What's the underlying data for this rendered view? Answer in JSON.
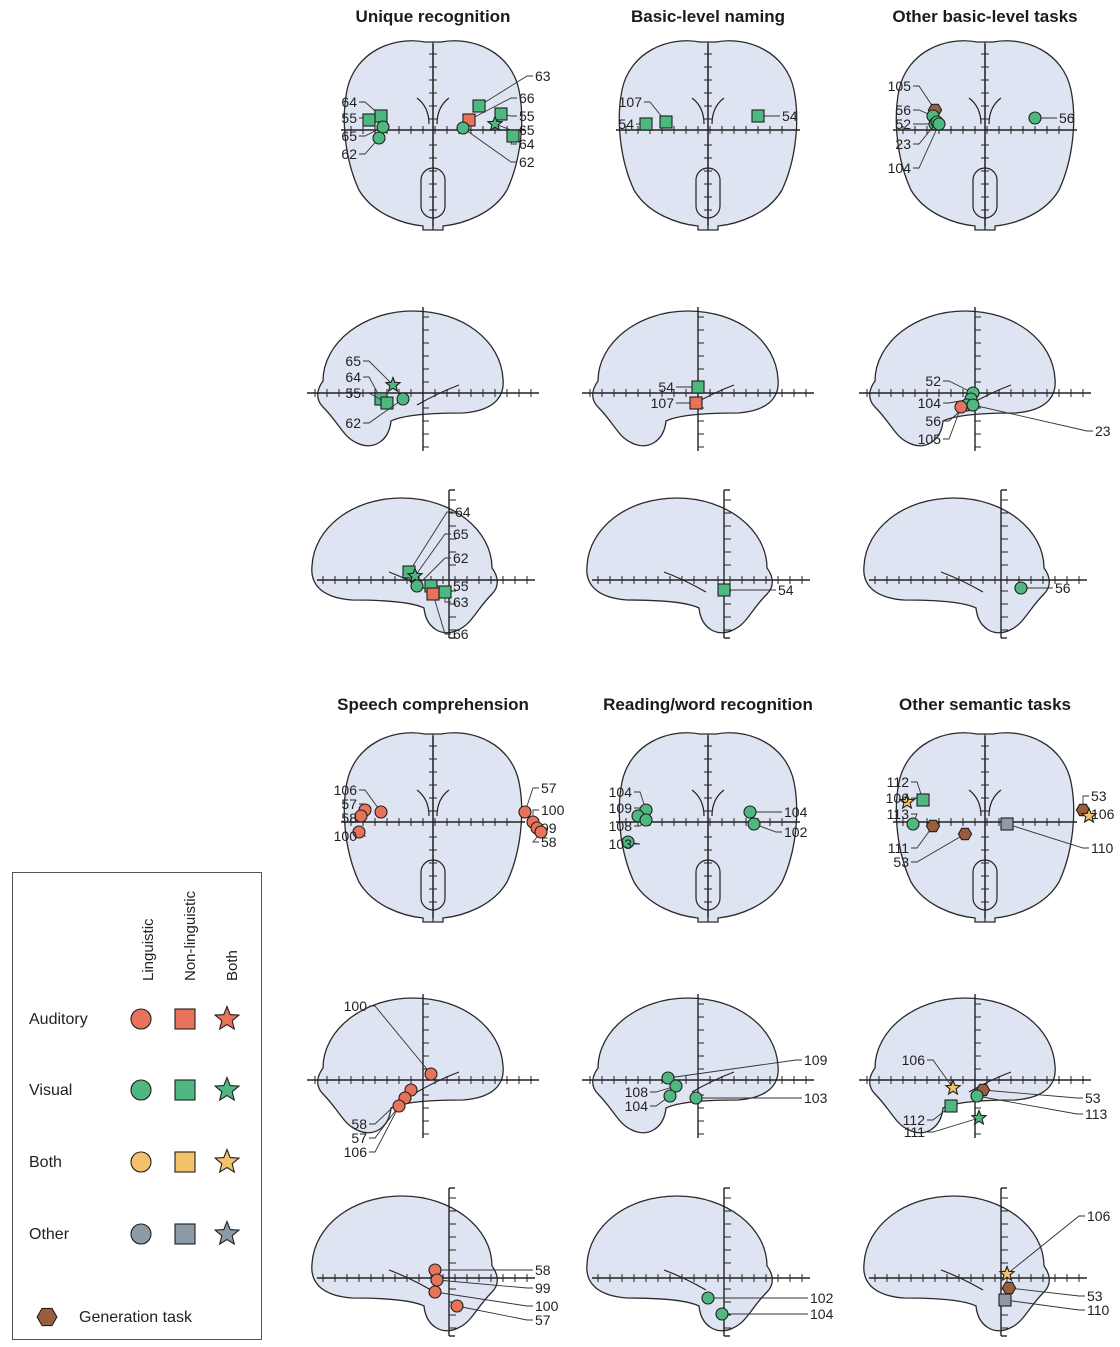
{
  "colors": {
    "brain_fill": "#dfe4f3",
    "brain_stroke": "#2b2b2b",
    "auditory": "#e8735a",
    "visual": "#4fb880",
    "both": "#f3c26b",
    "other": "#8c9ba6",
    "generation": "#9b5e3c"
  },
  "panels": [
    {
      "title": "Unique recognition"
    },
    {
      "title": "Basic-level naming"
    },
    {
      "title": "Other basic-level tasks"
    },
    {
      "title": "Speech comprehension"
    },
    {
      "title": "Reading/word recognition"
    },
    {
      "title": "Other semantic tasks"
    }
  ],
  "legend": {
    "columns": [
      "Linguistic",
      "Non-linguistic",
      "Both"
    ],
    "rows": [
      "Auditory",
      "Visual",
      "Both",
      "Other"
    ],
    "generation_label": "Generation task"
  },
  "views": [
    {
      "panel": 0,
      "view": "axial",
      "marks": [
        {
          "s": "square",
          "c": "visual",
          "label": "64"
        },
        {
          "s": "square",
          "c": "visual",
          "label": "55"
        },
        {
          "s": "circle",
          "c": "visual",
          "label": "65"
        },
        {
          "s": "circle",
          "c": "visual",
          "label": "62"
        },
        {
          "s": "square",
          "c": "visual",
          "label": "63"
        },
        {
          "s": "square",
          "c": "auditory",
          "label": "66"
        },
        {
          "s": "square",
          "c": "visual",
          "label": "55"
        },
        {
          "s": "star",
          "c": "visual",
          "label": "65"
        },
        {
          "s": "square",
          "c": "visual",
          "label": "64"
        },
        {
          "s": "circle",
          "c": "visual",
          "label": "62"
        }
      ]
    },
    {
      "panel": 1,
      "view": "axial",
      "marks": [
        {
          "s": "square",
          "c": "visual",
          "label": "107"
        },
        {
          "s": "square",
          "c": "visual",
          "label": "54"
        },
        {
          "s": "square",
          "c": "visual",
          "label": "54"
        }
      ]
    },
    {
      "panel": 2,
      "view": "axial",
      "marks": [
        {
          "s": "hexagon",
          "c": "generation",
          "label": "105"
        },
        {
          "s": "circle",
          "c": "visual",
          "label": "56"
        },
        {
          "s": "circle",
          "c": "visual",
          "label": "52"
        },
        {
          "s": "circle",
          "c": "visual",
          "label": "23"
        },
        {
          "s": "circle",
          "c": "visual",
          "label": "104"
        },
        {
          "s": "circle",
          "c": "visual",
          "label": "56"
        }
      ]
    },
    {
      "panel": 0,
      "view": "lateral",
      "marks": [
        {
          "s": "star",
          "c": "visual",
          "label": "65"
        },
        {
          "s": "square",
          "c": "visual",
          "label": "64"
        },
        {
          "s": "square",
          "c": "visual",
          "label": "55"
        },
        {
          "s": "circle",
          "c": "visual",
          "label": "62"
        }
      ]
    },
    {
      "panel": 1,
      "view": "lateral",
      "marks": [
        {
          "s": "square",
          "c": "visual",
          "label": "54"
        },
        {
          "s": "square",
          "c": "auditory",
          "label": "107"
        }
      ]
    },
    {
      "panel": 2,
      "view": "lateral",
      "marks": [
        {
          "s": "circle",
          "c": "visual",
          "label": "52"
        },
        {
          "s": "circle",
          "c": "visual",
          "label": "104"
        },
        {
          "s": "circle",
          "c": "visual",
          "label": "56"
        },
        {
          "s": "circle",
          "c": "auditory",
          "label": "105"
        },
        {
          "s": "circle",
          "c": "visual",
          "label": "23"
        }
      ]
    },
    {
      "panel": 0,
      "view": "medial",
      "marks": [
        {
          "s": "square",
          "c": "visual",
          "label": "64"
        },
        {
          "s": "star",
          "c": "visual",
          "label": "65"
        },
        {
          "s": "circle",
          "c": "visual",
          "label": "62"
        },
        {
          "s": "square",
          "c": "visual",
          "label": "55"
        },
        {
          "s": "square",
          "c": "visual",
          "label": "63"
        },
        {
          "s": "square",
          "c": "auditory",
          "label": "66"
        }
      ]
    },
    {
      "panel": 1,
      "view": "medial",
      "marks": [
        {
          "s": "square",
          "c": "visual",
          "label": "54"
        }
      ]
    },
    {
      "panel": 2,
      "view": "medial",
      "marks": [
        {
          "s": "circle",
          "c": "visual",
          "label": "56"
        }
      ]
    },
    {
      "panel": 3,
      "view": "axial",
      "marks": [
        {
          "s": "circle",
          "c": "auditory",
          "label": "106"
        },
        {
          "s": "circle",
          "c": "auditory",
          "label": "57"
        },
        {
          "s": "circle",
          "c": "auditory",
          "label": "58"
        },
        {
          "s": "circle",
          "c": "auditory",
          "label": "100"
        },
        {
          "s": "circle",
          "c": "auditory",
          "label": "57"
        },
        {
          "s": "circle",
          "c": "auditory",
          "label": "100"
        },
        {
          "s": "circle",
          "c": "auditory",
          "label": "99"
        },
        {
          "s": "circle",
          "c": "auditory",
          "label": "58"
        }
      ]
    },
    {
      "panel": 4,
      "view": "axial",
      "marks": [
        {
          "s": "circle",
          "c": "visual",
          "label": "104"
        },
        {
          "s": "circle",
          "c": "visual",
          "label": "109"
        },
        {
          "s": "circle",
          "c": "visual",
          "label": "108"
        },
        {
          "s": "circle",
          "c": "visual",
          "label": "103"
        },
        {
          "s": "circle",
          "c": "visual",
          "label": "104"
        },
        {
          "s": "circle",
          "c": "visual",
          "label": "102"
        }
      ]
    },
    {
      "panel": 5,
      "view": "axial",
      "marks": [
        {
          "s": "square",
          "c": "visual",
          "label": "112"
        },
        {
          "s": "star",
          "c": "both",
          "label": "106"
        },
        {
          "s": "circle",
          "c": "visual",
          "label": "113"
        },
        {
          "s": "hexagon",
          "c": "generation",
          "label": "111"
        },
        {
          "s": "hexagon",
          "c": "generation",
          "label": "53"
        },
        {
          "s": "hexagon",
          "c": "generation",
          "label": "53"
        },
        {
          "s": "star",
          "c": "both",
          "label": "106"
        },
        {
          "s": "square",
          "c": "other",
          "label": "110"
        }
      ]
    },
    {
      "panel": 3,
      "view": "lateral",
      "marks": [
        {
          "s": "circle",
          "c": "auditory",
          "label": "100"
        },
        {
          "s": "circle",
          "c": "auditory",
          "label": "58"
        },
        {
          "s": "circle",
          "c": "auditory",
          "label": "57"
        },
        {
          "s": "circle",
          "c": "auditory",
          "label": "106"
        }
      ]
    },
    {
      "panel": 4,
      "view": "lateral",
      "marks": [
        {
          "s": "circle",
          "c": "visual",
          "label": "109"
        },
        {
          "s": "circle",
          "c": "visual",
          "label": "108"
        },
        {
          "s": "circle",
          "c": "visual",
          "label": "104"
        },
        {
          "s": "circle",
          "c": "visual",
          "label": "103"
        }
      ]
    },
    {
      "panel": 5,
      "view": "lateral",
      "marks": [
        {
          "s": "star",
          "c": "both",
          "label": "106"
        },
        {
          "s": "hexagon",
          "c": "generation",
          "label": "53"
        },
        {
          "s": "circle",
          "c": "visual",
          "label": "113"
        },
        {
          "s": "square",
          "c": "visual",
          "label": "112"
        },
        {
          "s": "star",
          "c": "visual",
          "label": "111"
        }
      ]
    },
    {
      "panel": 3,
      "view": "medial",
      "marks": [
        {
          "s": "circle",
          "c": "auditory",
          "label": "58"
        },
        {
          "s": "circle",
          "c": "auditory",
          "label": "99"
        },
        {
          "s": "circle",
          "c": "auditory",
          "label": "100"
        },
        {
          "s": "circle",
          "c": "auditory",
          "label": "57"
        }
      ]
    },
    {
      "panel": 4,
      "view": "medial",
      "marks": [
        {
          "s": "circle",
          "c": "visual",
          "label": "102"
        },
        {
          "s": "circle",
          "c": "visual",
          "label": "104"
        }
      ]
    },
    {
      "panel": 5,
      "view": "medial",
      "marks": [
        {
          "s": "star",
          "c": "both",
          "label": "106"
        },
        {
          "s": "hexagon",
          "c": "generation",
          "label": "53"
        },
        {
          "s": "square",
          "c": "other",
          "label": "110"
        }
      ]
    }
  ]
}
